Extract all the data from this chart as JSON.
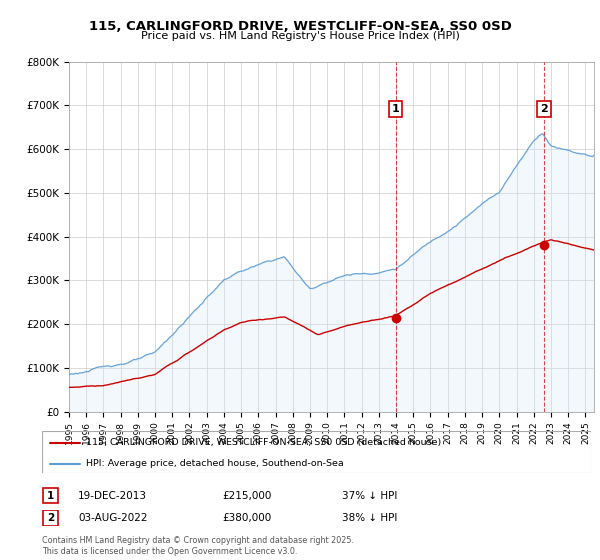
{
  "title": "115, CARLINGFORD DRIVE, WESTCLIFF-ON-SEA, SS0 0SD",
  "subtitle": "Price paid vs. HM Land Registry's House Price Index (HPI)",
  "legend_line1": "115, CARLINGFORD DRIVE, WESTCLIFF-ON-SEA, SS0 0SD (detached house)",
  "legend_line2": "HPI: Average price, detached house, Southend-on-Sea",
  "footnote": "Contains HM Land Registry data © Crown copyright and database right 2025.\nThis data is licensed under the Open Government Licence v3.0.",
  "annotation1": {
    "label": "1",
    "date": "19-DEC-2013",
    "price": "£215,000",
    "pct": "37% ↓ HPI"
  },
  "annotation2": {
    "label": "2",
    "date": "03-AUG-2022",
    "price": "£380,000",
    "pct": "38% ↓ HPI"
  },
  "hpi_color": "#5b9bd5",
  "hpi_fill_color": "#d6e8f7",
  "price_color": "#cc0000",
  "dashed_color": "#cc0000",
  "background_color": "#ffffff",
  "plot_bg_color": "#ffffff",
  "ylim": [
    0,
    800000
  ],
  "yticks": [
    0,
    100000,
    200000,
    300000,
    400000,
    500000,
    600000,
    700000,
    800000
  ],
  "ytick_labels": [
    "£0",
    "£100K",
    "£200K",
    "£300K",
    "£400K",
    "£500K",
    "£600K",
    "£700K",
    "£800K"
  ],
  "marker1_x": 2013.97,
  "marker1_y": 215000,
  "marker2_x": 2022.59,
  "marker2_y": 380000,
  "vline1_x": 2013.97,
  "vline2_x": 2022.59,
  "xmin": 1995,
  "xmax": 2025.5
}
